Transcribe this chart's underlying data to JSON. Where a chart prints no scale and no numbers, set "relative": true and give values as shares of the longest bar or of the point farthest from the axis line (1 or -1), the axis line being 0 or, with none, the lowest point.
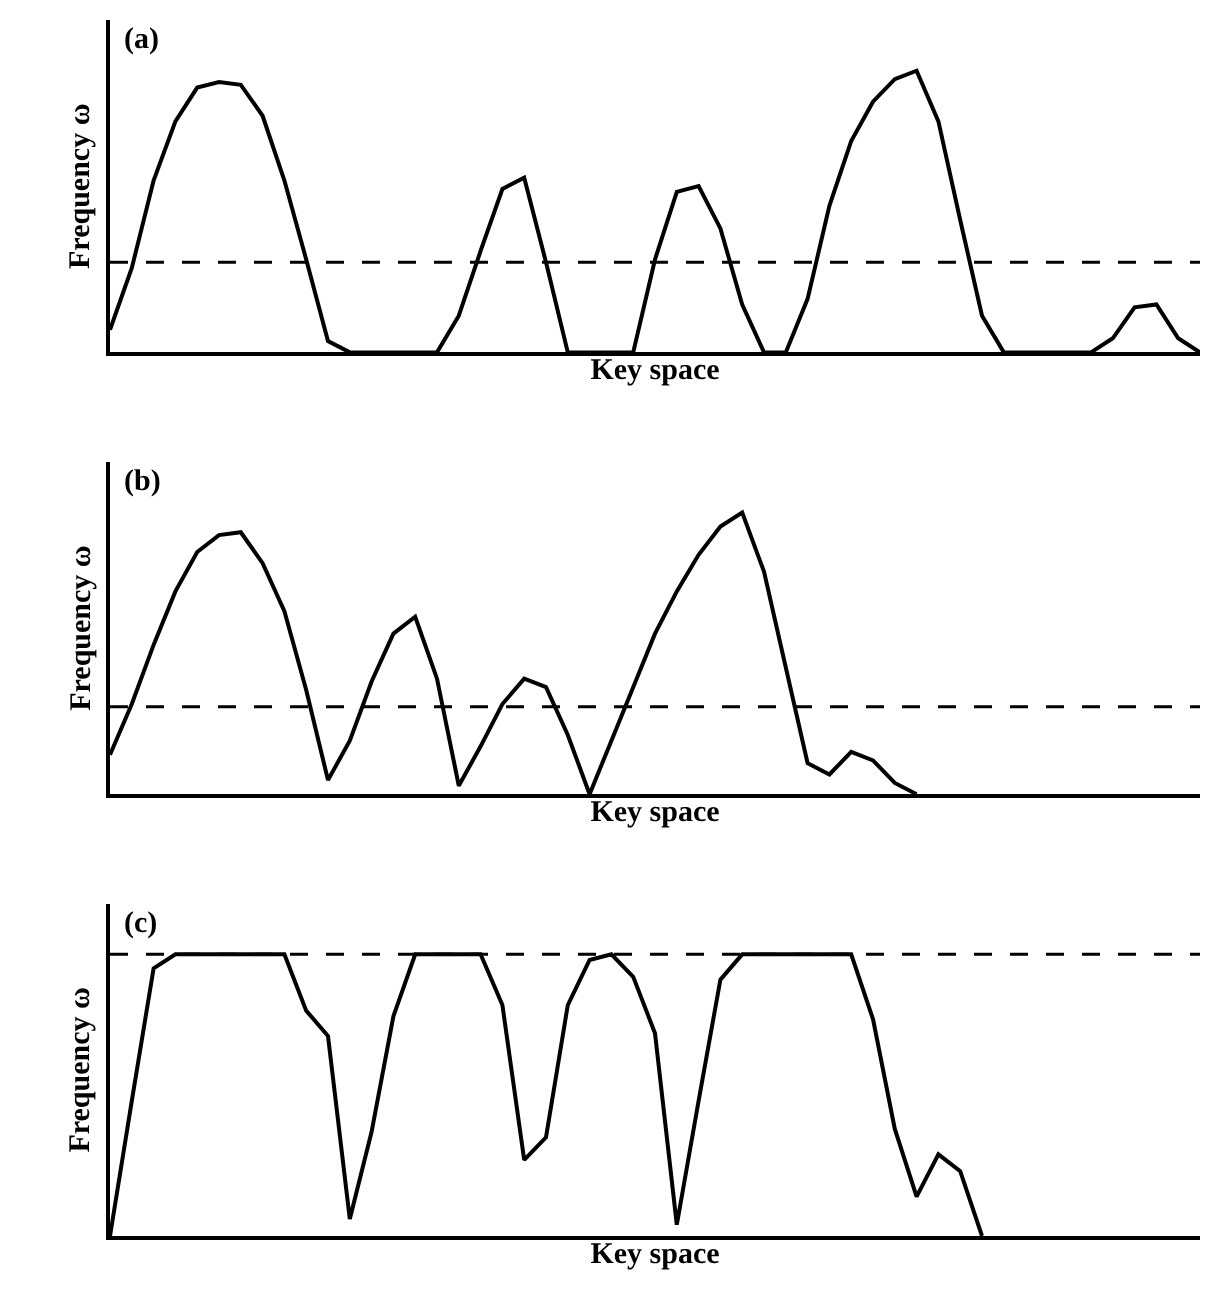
{
  "chart_data": [
    {
      "type": "line",
      "title": "(a)",
      "xlabel": "Key space",
      "ylabel": "Frequency ω",
      "relative": true,
      "tick_labels": false,
      "color": "#000000",
      "categories": [
        null,
        null,
        null,
        null,
        null,
        null,
        null,
        null,
        null,
        null,
        null,
        null,
        null,
        null,
        null,
        null,
        null,
        null,
        null,
        null,
        null,
        null,
        null,
        null,
        null,
        null,
        null,
        null,
        null,
        null,
        null,
        null,
        null,
        null,
        null,
        null,
        null,
        null,
        null,
        null,
        null,
        null,
        null,
        null,
        null,
        null,
        null,
        null,
        null,
        null,
        null
      ],
      "values": [
        0.08,
        0.3,
        0.61,
        0.82,
        0.94,
        0.96,
        0.95,
        0.84,
        0.61,
        0.33,
        0.04,
        0,
        0,
        0,
        0,
        0,
        0.13,
        0.36,
        0.58,
        0.62,
        0.32,
        0,
        0,
        0,
        0,
        0.33,
        0.57,
        0.59,
        0.44,
        0.17,
        0,
        0,
        0.19,
        0.52,
        0.75,
        0.89,
        0.97,
        1,
        0.82,
        0.47,
        0.13,
        0,
        0,
        0,
        0,
        0,
        0.05,
        0.16,
        0.17,
        0.05,
        0
      ],
      "ref_lines": [
        {
          "axis": "y",
          "value": 0.32,
          "line_style": "dashed",
          "color": "#000000"
        }
      ]
    },
    {
      "type": "line",
      "title": "(b)",
      "xlabel": "Key space",
      "ylabel": "Frequency ω",
      "relative": true,
      "tick_labels": false,
      "color": "#000000",
      "categories": [
        null,
        null,
        null,
        null,
        null,
        null,
        null,
        null,
        null,
        null,
        null,
        null,
        null,
        null,
        null,
        null,
        null,
        null,
        null,
        null,
        null,
        null,
        null,
        null,
        null,
        null,
        null,
        null,
        null,
        null,
        null,
        null,
        null,
        null,
        null,
        null,
        null,
        null,
        null,
        null,
        null,
        null,
        null,
        null,
        null,
        null,
        null,
        null,
        null,
        null,
        null
      ],
      "values": [
        0.14,
        0.32,
        0.53,
        0.72,
        0.86,
        0.92,
        0.93,
        0.82,
        0.65,
        0.37,
        0.05,
        0.19,
        0.4,
        0.57,
        0.63,
        0.41,
        0.03,
        0.17,
        0.32,
        0.41,
        0.38,
        0.21,
        0,
        0.19,
        0.38,
        0.57,
        0.72,
        0.85,
        0.95,
        1,
        0.79,
        0.45,
        0.11,
        0.07,
        0.15,
        0.12,
        0.04,
        0,
        null,
        null,
        null,
        null,
        null,
        null,
        null,
        null,
        null,
        null,
        null,
        null,
        null
      ],
      "ref_lines": [
        {
          "axis": "y",
          "value": 0.31,
          "line_style": "dashed",
          "color": "#000000"
        }
      ]
    },
    {
      "type": "line",
      "title": "(c)",
      "xlabel": "Key space",
      "ylabel": "Frequency ω",
      "relative": true,
      "tick_labels": false,
      "color": "#000000",
      "categories": [
        null,
        null,
        null,
        null,
        null,
        null,
        null,
        null,
        null,
        null,
        null,
        null,
        null,
        null,
        null,
        null,
        null,
        null,
        null,
        null,
        null,
        null,
        null,
        null,
        null,
        null,
        null,
        null,
        null,
        null,
        null,
        null,
        null,
        null,
        null,
        null,
        null,
        null,
        null,
        null,
        null,
        null,
        null,
        null,
        null,
        null,
        null,
        null,
        null,
        null,
        null
      ],
      "values": [
        0,
        0.48,
        0.95,
        1,
        1,
        1,
        1,
        1,
        1,
        0.8,
        0.71,
        0.06,
        0.37,
        0.78,
        1,
        1,
        1,
        1,
        0.82,
        0.27,
        0.35,
        0.82,
        0.98,
        1,
        0.92,
        0.72,
        0.04,
        0.48,
        0.91,
        1,
        1,
        1,
        1,
        1,
        1,
        0.77,
        0.38,
        0.14,
        0.29,
        0.23,
        0,
        null,
        null,
        null,
        null,
        null,
        null,
        null,
        null,
        null,
        null
      ],
      "ref_lines": [
        {
          "axis": "y",
          "value": 1,
          "line_style": "dashed",
          "color": "#000000"
        }
      ]
    }
  ]
}
